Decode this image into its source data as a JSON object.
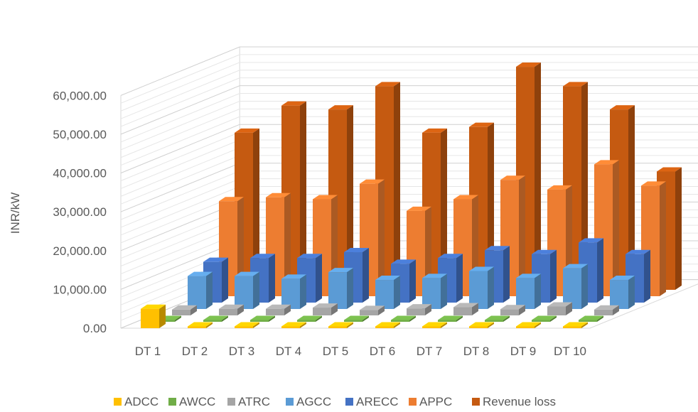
{
  "chart_data": {
    "type": "bar",
    "subtype": "3d-clustered-column",
    "title": "",
    "xlabel": "",
    "ylabel": "INR/kW",
    "ylim": [
      0,
      60000
    ],
    "y_ticks": [
      "0.00",
      "10,000.00",
      "20,000.00",
      "30,000.00",
      "40,000.00",
      "50,000.00",
      "60,000.00"
    ],
    "y_tick_values": [
      0,
      10000,
      20000,
      30000,
      40000,
      50000,
      60000
    ],
    "grid": true,
    "legend_position": "bottom",
    "categories": [
      "DT 1",
      "DT 2",
      "DT 3",
      "DT 4",
      "DT 5",
      "DT 6",
      "DT 7",
      "DT 8",
      "DT 9",
      "DT 10"
    ],
    "series": [
      {
        "name": "ADCC",
        "color": "#FFC000",
        "values": [
          5000,
          100,
          100,
          100,
          100,
          100,
          100,
          100,
          100,
          100
        ]
      },
      {
        "name": "AWCC",
        "color": "#70AD47",
        "values": [
          200,
          200,
          200,
          200,
          200,
          200,
          200,
          200,
          200,
          200
        ]
      },
      {
        "name": "ATRC",
        "color": "#A5A5A5",
        "values": [
          1500,
          1700,
          1700,
          2000,
          1400,
          1800,
          2100,
          1600,
          2300,
          1500
        ]
      },
      {
        "name": "AGCC",
        "color": "#5B9BD5",
        "values": [
          8500,
          8500,
          7800,
          9500,
          7500,
          8000,
          9800,
          8000,
          10500,
          7500
        ]
      },
      {
        "name": "ARECC",
        "color": "#4472C4",
        "values": [
          10500,
          11500,
          11500,
          13000,
          10000,
          11500,
          13500,
          12500,
          15500,
          12500
        ]
      },
      {
        "name": "APPC",
        "color": "#ED7D31",
        "values": [
          24500,
          25500,
          25000,
          29000,
          22000,
          25000,
          30000,
          27500,
          34000,
          28500
        ]
      },
      {
        "name": "Revenue loss",
        "color": "#C55A11",
        "values": [
          40500,
          47500,
          46500,
          52500,
          40500,
          42000,
          57500,
          52500,
          46500,
          30500
        ]
      }
    ]
  }
}
